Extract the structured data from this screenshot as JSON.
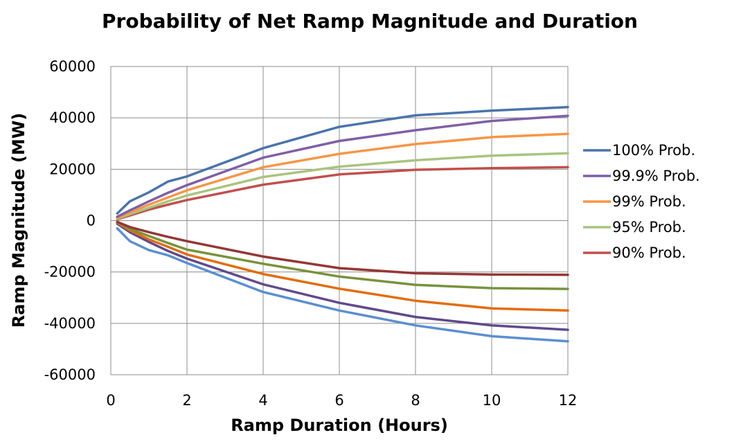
{
  "chart_data": {
    "type": "line",
    "title": "Probability of Net Ramp Magnitude and Duration",
    "xlabel": "Ramp Duration (Hours)",
    "ylabel": "Ramp Magnitude (MW)",
    "xlim": [
      0,
      12
    ],
    "ylim": [
      -60000,
      60000
    ],
    "xticks": [
      0,
      2,
      4,
      6,
      8,
      10,
      12
    ],
    "yticks": [
      60000,
      40000,
      20000,
      0,
      -20000,
      -40000,
      -60000
    ],
    "grid": true,
    "legend_position": "right",
    "x": [
      0.17,
      0.5,
      1,
      1.5,
      2,
      4,
      6,
      8,
      10,
      12
    ],
    "series": [
      {
        "name": "100% Prob.",
        "color": "#4a74ac",
        "values": [
          2800,
          7500,
          11000,
          15200,
          17200,
          28200,
          36500,
          41000,
          42800,
          44200
        ]
      },
      {
        "name": "99.9% Prob.",
        "color": "#7f5fa8",
        "values": [
          1500,
          4000,
          7500,
          10800,
          13800,
          24500,
          31000,
          35200,
          38800,
          40800
        ]
      },
      {
        "name": "99% Prob.",
        "color": "#f79646",
        "values": [
          1000,
          3200,
          6200,
          9000,
          11800,
          20800,
          26000,
          29800,
          32500,
          33800
        ]
      },
      {
        "name": "95% Prob.",
        "color": "#a9c47f",
        "values": [
          700,
          2500,
          5000,
          7500,
          9800,
          17000,
          21000,
          23500,
          25300,
          26200
        ]
      },
      {
        "name": "90% Prob.",
        "color": "#c0504d",
        "values": [
          500,
          2000,
          4300,
          6200,
          8000,
          14000,
          18000,
          19800,
          20400,
          20800
        ]
      }
    ],
    "lower_series": [
      {
        "color": "#5b8fd0",
        "values": [
          -3000,
          -8000,
          -11500,
          -13500,
          -16500,
          -27800,
          -35000,
          -40800,
          -45000,
          -47000
        ]
      },
      {
        "color": "#5f4a8b",
        "values": [
          -1200,
          -4500,
          -8300,
          -11800,
          -14800,
          -24800,
          -32000,
          -37500,
          -40800,
          -42500
        ]
      },
      {
        "color": "#e46c0a",
        "values": [
          -800,
          -3800,
          -7300,
          -10200,
          -13200,
          -20800,
          -26500,
          -31200,
          -34200,
          -35000
        ]
      },
      {
        "color": "#77933c",
        "values": [
          -600,
          -3200,
          -6000,
          -8700,
          -11300,
          -16800,
          -21800,
          -25000,
          -26300,
          -26600
        ]
      },
      {
        "color": "#953735",
        "values": [
          -500,
          -2500,
          -4500,
          -6300,
          -8000,
          -14000,
          -18500,
          -20500,
          -21000,
          -21100
        ]
      }
    ]
  }
}
